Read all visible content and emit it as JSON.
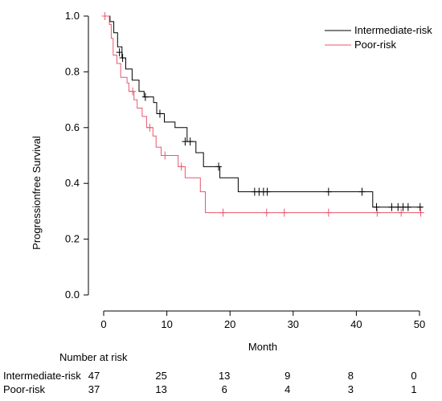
{
  "chart_data": {
    "type": "line",
    "chart_kind": "kaplan-meier",
    "title": "",
    "xlabel": "Month",
    "ylabel": "Progressionfree Survival",
    "xlim": [
      0,
      50
    ],
    "ylim": [
      0,
      1
    ],
    "x_ticks": [
      0,
      10,
      20,
      30,
      40,
      50
    ],
    "y_ticks": [
      "0.0",
      "0.2",
      "0.4",
      "0.6",
      "0.8",
      "1.0"
    ],
    "grid": false,
    "legend_position": "top-right",
    "series": [
      {
        "name": "Intermediate-risk",
        "color": "#000000",
        "steps": [
          [
            0,
            1.0
          ],
          [
            1,
            0.98
          ],
          [
            1.6,
            0.94
          ],
          [
            2.2,
            0.89
          ],
          [
            2.9,
            0.85
          ],
          [
            3.5,
            0.81
          ],
          [
            4.5,
            0.77
          ],
          [
            5.6,
            0.73
          ],
          [
            6.4,
            0.71
          ],
          [
            7.9,
            0.69
          ],
          [
            8.4,
            0.65
          ],
          [
            9.6,
            0.62
          ],
          [
            11.3,
            0.6
          ],
          [
            13.2,
            0.55
          ],
          [
            14.6,
            0.51
          ],
          [
            15.8,
            0.46
          ],
          [
            18.4,
            0.42
          ],
          [
            21.3,
            0.37
          ],
          [
            42.6,
            0.315
          ],
          [
            50.5,
            0.315
          ]
        ],
        "censored": [
          [
            2.5,
            0.87
          ],
          [
            3.0,
            0.85
          ],
          [
            6.6,
            0.71
          ],
          [
            8.9,
            0.65
          ],
          [
            12.9,
            0.55
          ],
          [
            13.7,
            0.55
          ],
          [
            18.2,
            0.46
          ],
          [
            23.9,
            0.37
          ],
          [
            24.6,
            0.37
          ],
          [
            25.3,
            0.37
          ],
          [
            25.9,
            0.37
          ],
          [
            35.6,
            0.37
          ],
          [
            40.9,
            0.37
          ],
          [
            43.2,
            0.315
          ],
          [
            45.6,
            0.315
          ],
          [
            46.6,
            0.315
          ],
          [
            47.4,
            0.315
          ],
          [
            48.2,
            0.315
          ],
          [
            50.1,
            0.315
          ]
        ]
      },
      {
        "name": "Poor-risk",
        "color": "#e8586e",
        "steps": [
          [
            0,
            1.0
          ],
          [
            0.9,
            0.97
          ],
          [
            1.2,
            0.92
          ],
          [
            1.5,
            0.86
          ],
          [
            2.1,
            0.83
          ],
          [
            2.7,
            0.78
          ],
          [
            3.7,
            0.76
          ],
          [
            4.0,
            0.73
          ],
          [
            4.8,
            0.7
          ],
          [
            5.3,
            0.67
          ],
          [
            6.1,
            0.64
          ],
          [
            6.8,
            0.6
          ],
          [
            7.8,
            0.57
          ],
          [
            8.3,
            0.53
          ],
          [
            9.1,
            0.5
          ],
          [
            11.8,
            0.46
          ],
          [
            12.9,
            0.42
          ],
          [
            15.3,
            0.37
          ],
          [
            16.1,
            0.295
          ],
          [
            50.5,
            0.295
          ]
        ],
        "censored": [
          [
            0.2,
            1.0
          ],
          [
            4.6,
            0.73
          ],
          [
            7.3,
            0.6
          ],
          [
            9.7,
            0.5
          ],
          [
            12.3,
            0.46
          ],
          [
            18.9,
            0.295
          ],
          [
            25.8,
            0.295
          ],
          [
            28.6,
            0.295
          ],
          [
            35.6,
            0.295
          ],
          [
            43.3,
            0.295
          ],
          [
            47.1,
            0.295
          ],
          [
            50.2,
            0.295
          ]
        ]
      }
    ],
    "risk_table": {
      "title": "Number at risk",
      "rows": [
        {
          "label": "Intermediate-risk",
          "values": [
            "47",
            "25",
            "13",
            "9",
            "8",
            "0"
          ]
        },
        {
          "label": "Poor-risk",
          "values": [
            "37",
            "13",
            "6",
            "4",
            "3",
            "1"
          ]
        }
      ]
    }
  }
}
